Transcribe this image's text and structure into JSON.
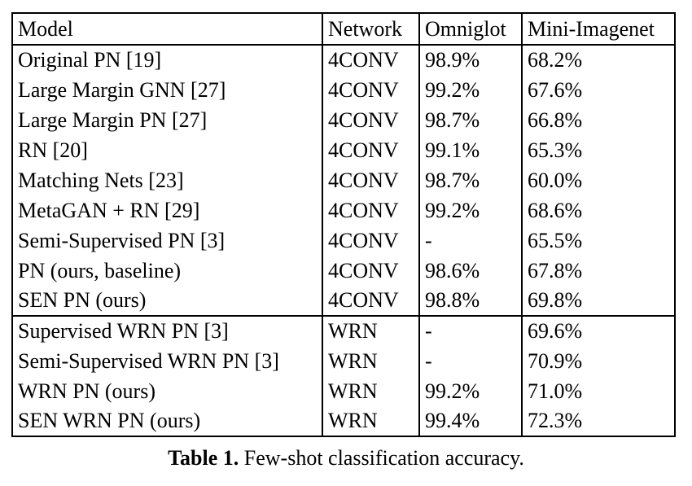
{
  "table": {
    "columns": [
      "Model",
      "Network",
      "Omniglot",
      "Mini-Imagenet"
    ],
    "groups": [
      {
        "rows": [
          {
            "model": "Original PN [19]",
            "network": "4CONV",
            "omniglot": "98.9%",
            "mini": "68.2%",
            "bold": []
          },
          {
            "model": "Large Margin GNN [27]",
            "network": "4CONV",
            "omniglot": "99.2%",
            "mini": "67.6%",
            "bold": [
              "omniglot"
            ]
          },
          {
            "model": "Large Margin PN [27]",
            "network": "4CONV",
            "omniglot": "98.7%",
            "mini": "66.8%",
            "bold": []
          },
          {
            "model": "RN [20]",
            "network": "4CONV",
            "omniglot": "99.1%",
            "mini": "65.3%",
            "bold": []
          },
          {
            "model": "Matching Nets [23]",
            "network": "4CONV",
            "omniglot": "98.7%",
            "mini": "60.0%",
            "bold": []
          },
          {
            "model": "MetaGAN + RN [29]",
            "network": "4CONV",
            "omniglot": "99.2%",
            "mini": "68.6%",
            "bold": [
              "omniglot"
            ]
          },
          {
            "model": "Semi-Supervised PN [3]",
            "network": "4CONV",
            "omniglot": "-",
            "mini": "65.5%",
            "bold": []
          },
          {
            "model": "PN (ours, baseline)",
            "network": "4CONV",
            "omniglot": "98.6%",
            "mini": "67.8%",
            "bold": []
          },
          {
            "model": "SEN PN (ours)",
            "network": "4CONV",
            "omniglot": "98.8%",
            "mini": "69.8%",
            "bold": [
              "model",
              "network",
              "mini"
            ]
          }
        ]
      },
      {
        "rows": [
          {
            "model": "Supervised WRN PN [3]",
            "network": "WRN",
            "omniglot": "-",
            "mini": "69.6%",
            "bold": []
          },
          {
            "model": "Semi-Supervised WRN PN [3]",
            "network": "WRN",
            "omniglot": "-",
            "mini": "70.9%",
            "bold": []
          },
          {
            "model": "WRN PN (ours)",
            "network": "WRN",
            "omniglot": "99.2%",
            "mini": "71.0%",
            "bold": []
          },
          {
            "model": "SEN WRN PN (ours)",
            "network": "WRN",
            "omniglot": "99.4%",
            "mini": "72.3%",
            "bold": [
              "model",
              "network",
              "omniglot",
              "mini"
            ]
          }
        ]
      }
    ]
  },
  "caption": {
    "label": "Table 1.",
    "text": "Few-shot classification accuracy."
  }
}
